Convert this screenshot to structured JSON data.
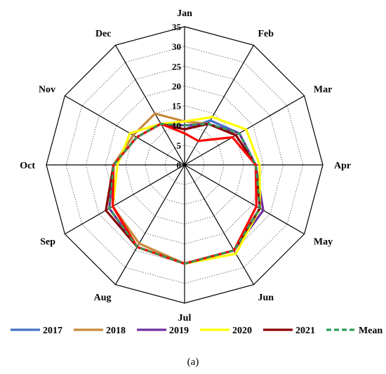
{
  "caption": "(a)",
  "chart_data": {
    "type": "radar",
    "categories": [
      "Jan",
      "Feb",
      "Mar",
      "Apr",
      "May",
      "Jun",
      "Jul",
      "Aug",
      "Sep",
      "Oct",
      "Nov",
      "Dec"
    ],
    "rlim": [
      0,
      35
    ],
    "rticks": [
      0,
      5,
      10,
      15,
      20,
      25,
      30,
      35
    ],
    "rtick_labels": [
      "0",
      "5",
      "10",
      "15",
      "20",
      "25",
      "30",
      "35"
    ],
    "grid": true,
    "legend_position": "bottom",
    "series": [
      {
        "name": "2017",
        "color": "#4472C4",
        "dash": "solid",
        "values": [
          9,
          13,
          16,
          18,
          22,
          25,
          25,
          24,
          22,
          18,
          14,
          12
        ]
      },
      {
        "name": "2018",
        "color": "#C8893A",
        "dash": "solid",
        "values": [
          11,
          12,
          15,
          18,
          22,
          25,
          25,
          23,
          21,
          18,
          15,
          15
        ]
      },
      {
        "name": "2019",
        "color": "#7030A0",
        "dash": "solid",
        "values": [
          10,
          12,
          16,
          18,
          23,
          25,
          25,
          24,
          22,
          18,
          14,
          12
        ]
      },
      {
        "name": "2020",
        "color": "#FFFF00",
        "dash": "solid",
        "values": [
          11,
          14,
          18,
          19,
          22,
          26,
          25,
          24,
          21,
          17,
          16,
          12
        ]
      },
      {
        "name": "2021",
        "color": "#8B0000",
        "dash": "solid",
        "values": [
          9,
          12,
          15,
          18,
          22,
          25,
          25,
          24,
          23,
          18,
          14,
          12
        ]
      },
      {
        "name": "",
        "color": "#FF0000",
        "dash": "solid",
        "legend": false,
        "values": [
          8,
          7,
          14,
          18,
          21,
          25,
          25,
          24,
          21,
          18,
          14,
          12
        ]
      },
      {
        "name": "Mean",
        "color": "#2E9E5B",
        "dash": "dash",
        "values": [
          10,
          12,
          16,
          18,
          22,
          25,
          25,
          24,
          22,
          18,
          14,
          12
        ]
      }
    ]
  }
}
